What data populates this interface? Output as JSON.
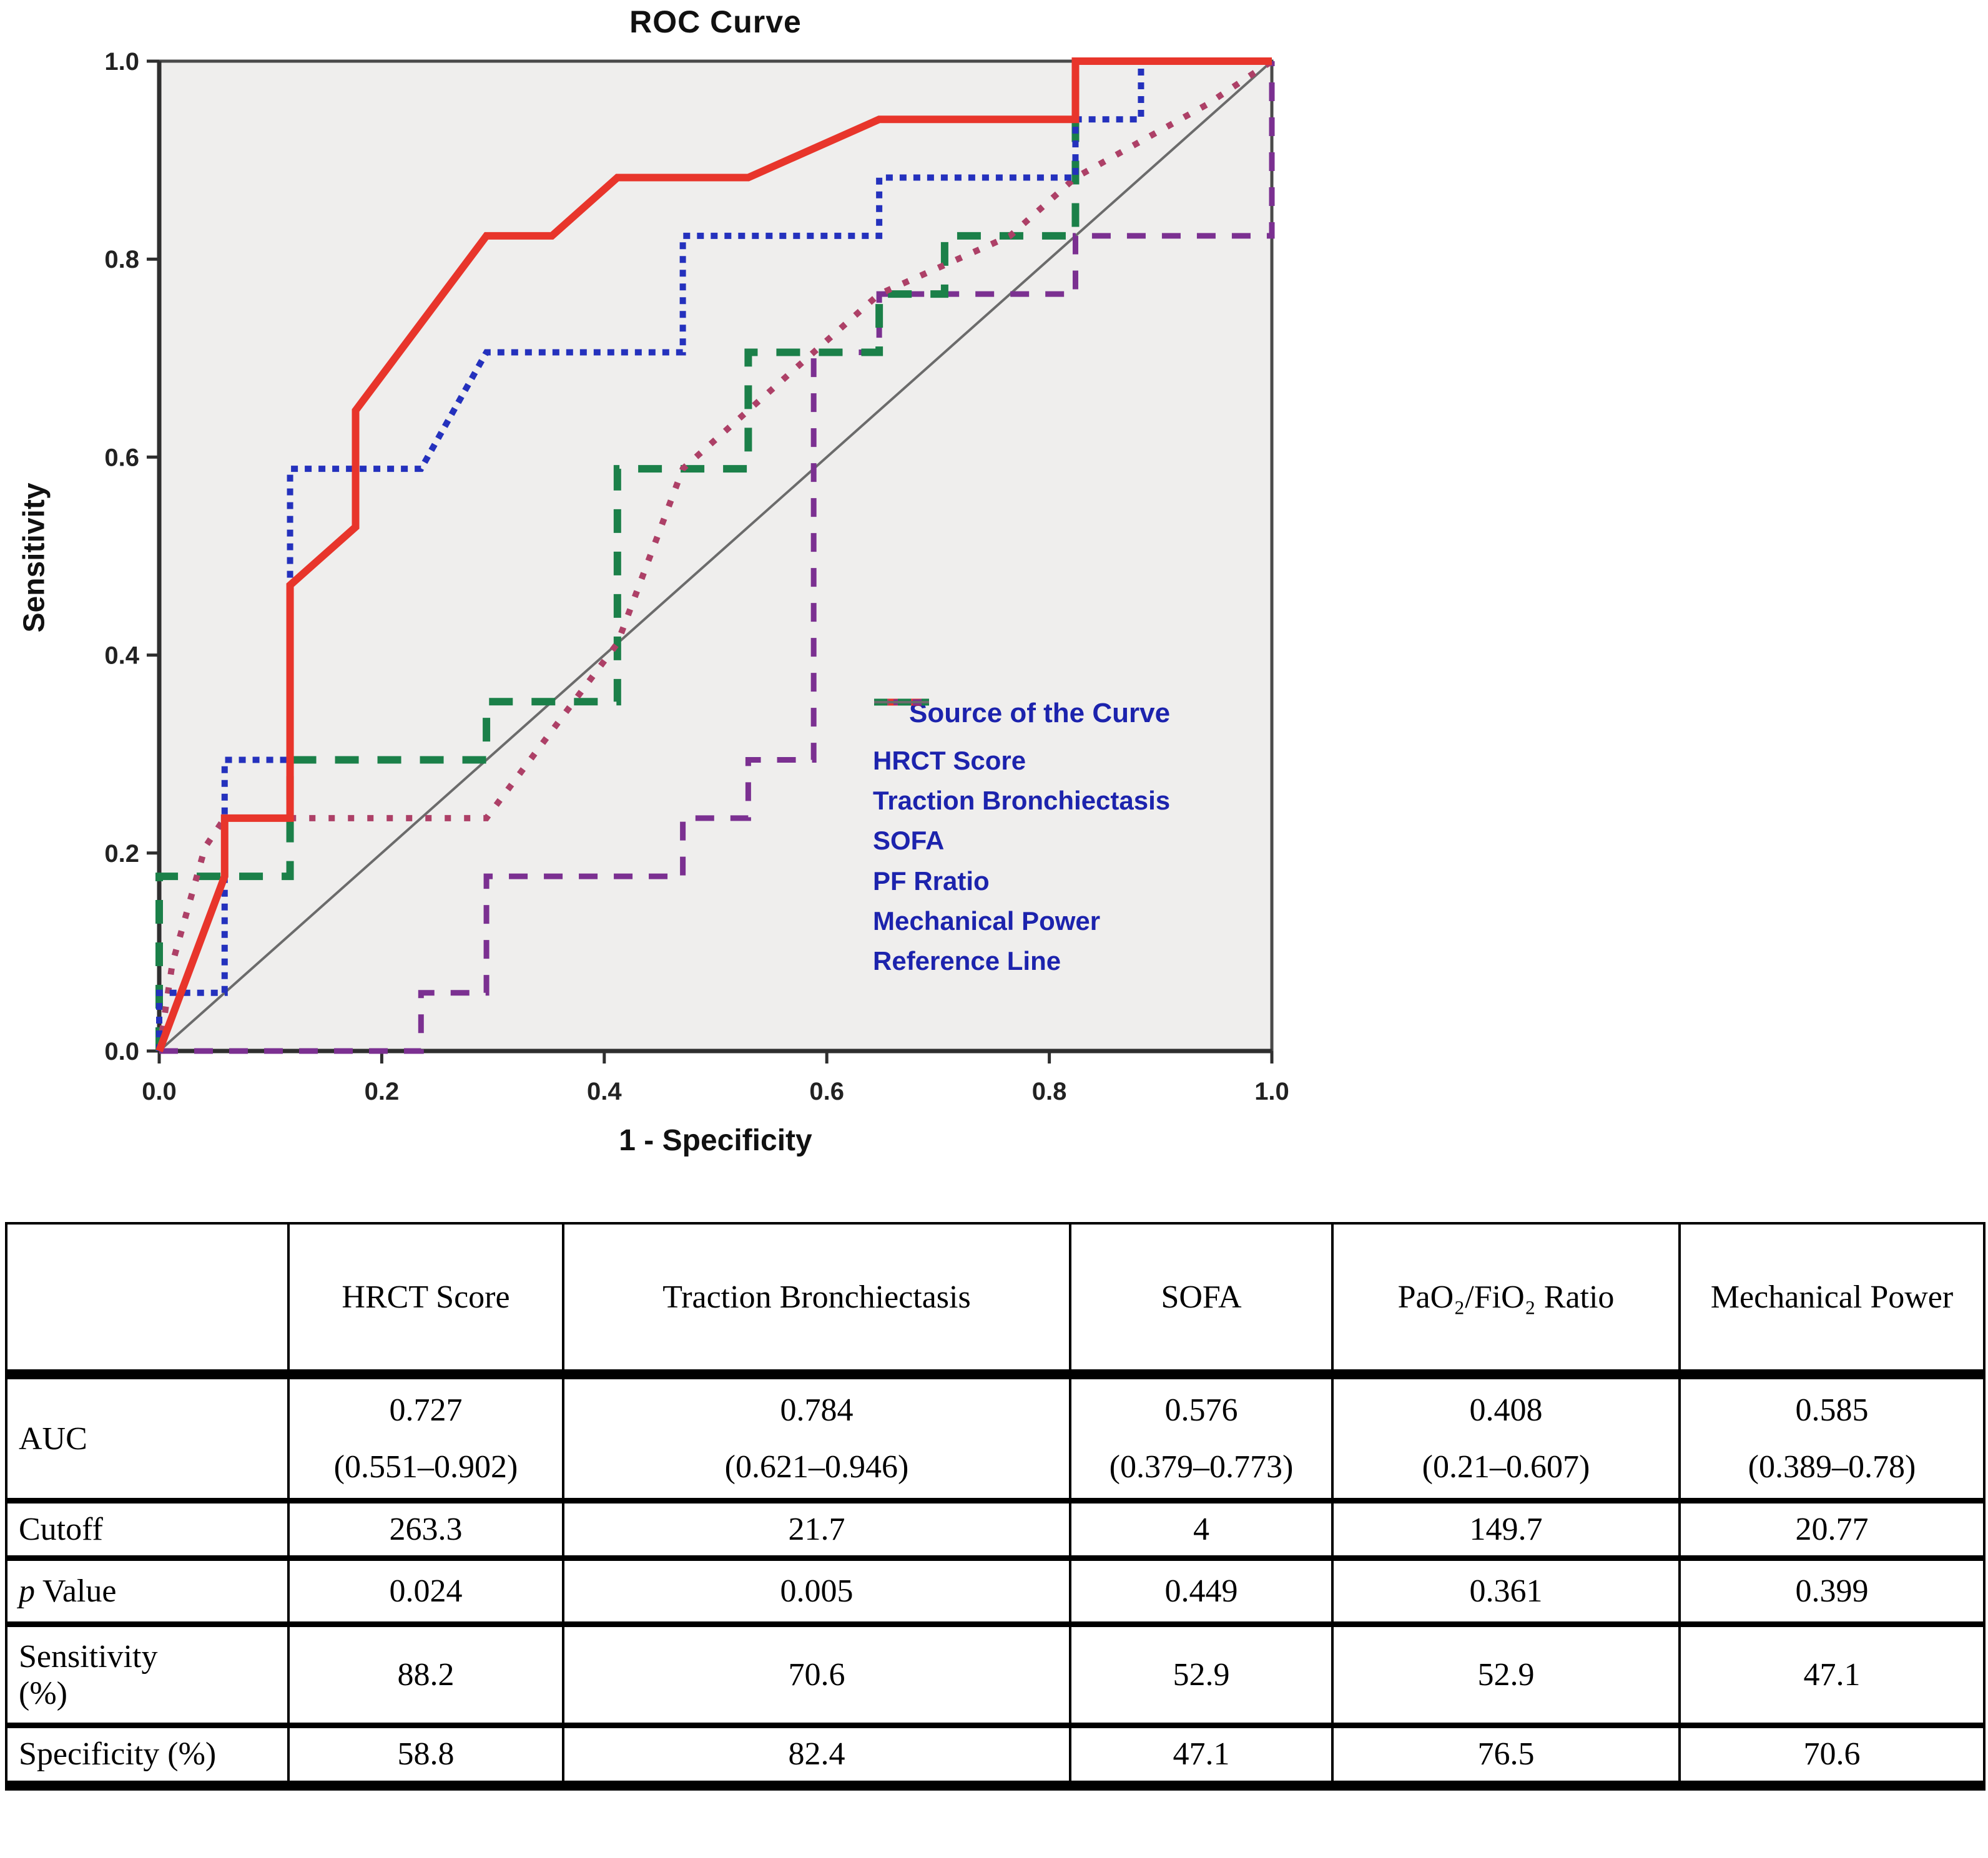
{
  "chart_data": {
    "type": "line",
    "subtype": "roc-step-curves",
    "title": "ROC Curve",
    "xlabel": "1 - Specificity",
    "ylabel": "Sensitivity",
    "xlim": [
      0.0,
      1.0
    ],
    "ylim": [
      0.0,
      1.0
    ],
    "grid": false,
    "plot_bg_color": "#efeeed",
    "x_ticks": [
      0,
      0.2,
      0.4,
      0.6,
      0.8,
      1.0
    ],
    "x_tick_labels": [
      "0.0",
      "0.2",
      "0.4",
      "0.6",
      "0.8",
      "1.0"
    ],
    "y_ticks": [
      0,
      0.2,
      0.4,
      0.6,
      0.8,
      1.0
    ],
    "y_tick_labels": [
      "0.0",
      "0.2",
      "0.4",
      "0.6",
      "0.8",
      "1.0"
    ],
    "legend": {
      "title": "Source of the Curve",
      "position": "inside lower right"
    },
    "series": [
      {
        "name": "HRCT Score",
        "color": "#2431bd",
        "width": 10,
        "dash": [
          11,
          11
        ],
        "points": [
          [
            0,
            0
          ],
          [
            0,
            0.0588
          ],
          [
            0.0588,
            0.0588
          ],
          [
            0.0588,
            0.2941
          ],
          [
            0.1176,
            0.2941
          ],
          [
            0.1176,
            0.5882
          ],
          [
            0.2353,
            0.5882
          ],
          [
            0.2941,
            0.7059
          ],
          [
            0.4706,
            0.7059
          ],
          [
            0.4706,
            0.8235
          ],
          [
            0.6471,
            0.8235
          ],
          [
            0.6471,
            0.8824
          ],
          [
            0.8235,
            0.8824
          ],
          [
            0.8235,
            0.9412
          ],
          [
            0.8824,
            0.9412
          ],
          [
            0.8824,
            1
          ],
          [
            1,
            1
          ]
        ]
      },
      {
        "name": "Traction Bronchiectasis",
        "color": "#e8352b",
        "width": 12,
        "dash": null,
        "points": [
          [
            0,
            0
          ],
          [
            0.0588,
            0.1765
          ],
          [
            0.0588,
            0.2353
          ],
          [
            0.1176,
            0.2353
          ],
          [
            0.1176,
            0.4706
          ],
          [
            0.1765,
            0.5294
          ],
          [
            0.1765,
            0.6471
          ],
          [
            0.2941,
            0.8235
          ],
          [
            0.3529,
            0.8235
          ],
          [
            0.4118,
            0.8824
          ],
          [
            0.5294,
            0.8824
          ],
          [
            0.6471,
            0.9412
          ],
          [
            0.8235,
            0.9412
          ],
          [
            0.8235,
            1
          ],
          [
            1,
            1
          ]
        ]
      },
      {
        "name": "SOFA",
        "color": "#ad4067",
        "width": 10,
        "dash": [
          10,
          21
        ],
        "points": [
          [
            0,
            0
          ],
          [
            0.0118,
            0.0882
          ],
          [
            0.0412,
            0.2059
          ],
          [
            0.0588,
            0.2353
          ],
          [
            0.2941,
            0.2353
          ],
          [
            0.3529,
            0.3235
          ],
          [
            0.4118,
            0.4118
          ],
          [
            0.4706,
            0.5882
          ],
          [
            0.5294,
            0.6471
          ],
          [
            0.5882,
            0.7059
          ],
          [
            0.6471,
            0.7647
          ],
          [
            0.7059,
            0.7941
          ],
          [
            0.7647,
            0.8235
          ],
          [
            0.8235,
            0.8824
          ],
          [
            0.9412,
            0.9559
          ],
          [
            1,
            1
          ]
        ]
      },
      {
        "name": "PF Rratio",
        "color": "#7b3091",
        "width": 9,
        "dash": [
          30,
          26
        ],
        "points": [
          [
            0,
            0
          ],
          [
            0.2353,
            0
          ],
          [
            0.2353,
            0.0588
          ],
          [
            0.2941,
            0.0588
          ],
          [
            0.2941,
            0.1765
          ],
          [
            0.4706,
            0.1765
          ],
          [
            0.4706,
            0.2353
          ],
          [
            0.5294,
            0.2353
          ],
          [
            0.5294,
            0.2941
          ],
          [
            0.5882,
            0.2941
          ],
          [
            0.5882,
            0.7059
          ],
          [
            0.6471,
            0.7059
          ],
          [
            0.6471,
            0.7647
          ],
          [
            0.8235,
            0.7647
          ],
          [
            0.8235,
            0.8235
          ],
          [
            1,
            0.8235
          ],
          [
            1,
            1
          ]
        ]
      },
      {
        "name": "Mechanical Power",
        "color": "#1b8049",
        "width": 12,
        "dash": [
          38,
          30
        ],
        "points": [
          [
            0,
            0
          ],
          [
            0,
            0.1765
          ],
          [
            0.1176,
            0.1765
          ],
          [
            0.1176,
            0.2941
          ],
          [
            0.2941,
            0.2941
          ],
          [
            0.2941,
            0.3529
          ],
          [
            0.4118,
            0.3529
          ],
          [
            0.4118,
            0.5882
          ],
          [
            0.5294,
            0.5882
          ],
          [
            0.5294,
            0.7059
          ],
          [
            0.6471,
            0.7059
          ],
          [
            0.6471,
            0.7647
          ],
          [
            0.7059,
            0.7647
          ],
          [
            0.7059,
            0.8235
          ],
          [
            0.8235,
            0.8235
          ],
          [
            0.8235,
            1
          ],
          [
            1,
            1
          ]
        ]
      },
      {
        "name": "Reference Line",
        "color": "#6b6b6b",
        "width": 4,
        "dash": null,
        "points": [
          [
            0,
            0
          ],
          [
            1,
            1
          ]
        ]
      }
    ],
    "table": {
      "columns": [
        "",
        "HRCT Score",
        "Traction Bronchiectasis",
        "SOFA",
        "PaO₂/FiO₂ Ratio",
        "Mechanical Power"
      ],
      "rows": [
        {
          "key": "auc",
          "label": "AUC",
          "cells": [
            "0.727\n(0.551–0.902)",
            "0.784\n(0.621–0.946)",
            "0.576\n(0.379–0.773)",
            "0.408\n(0.21–0.607)",
            "0.585\n(0.389–0.78)"
          ]
        },
        {
          "key": "cutoff",
          "label": "Cutoff",
          "cells": [
            "263.3",
            "21.7",
            "4",
            "149.7",
            "20.77"
          ]
        },
        {
          "key": "pvalue",
          "label_italic": "p",
          "label": " Value",
          "cells": [
            "0.024",
            "0.005",
            "0.449",
            "0.361",
            "0.399"
          ]
        },
        {
          "key": "sens",
          "label": "Sensitivity\n(%)",
          "cells": [
            "88.2",
            "70.6",
            "52.9",
            "52.9",
            "47.1"
          ]
        },
        {
          "key": "spec",
          "label": "Specificity (%)",
          "cells": [
            "58.8",
            "82.4",
            "47.1",
            "76.5",
            "70.6"
          ]
        }
      ]
    }
  }
}
